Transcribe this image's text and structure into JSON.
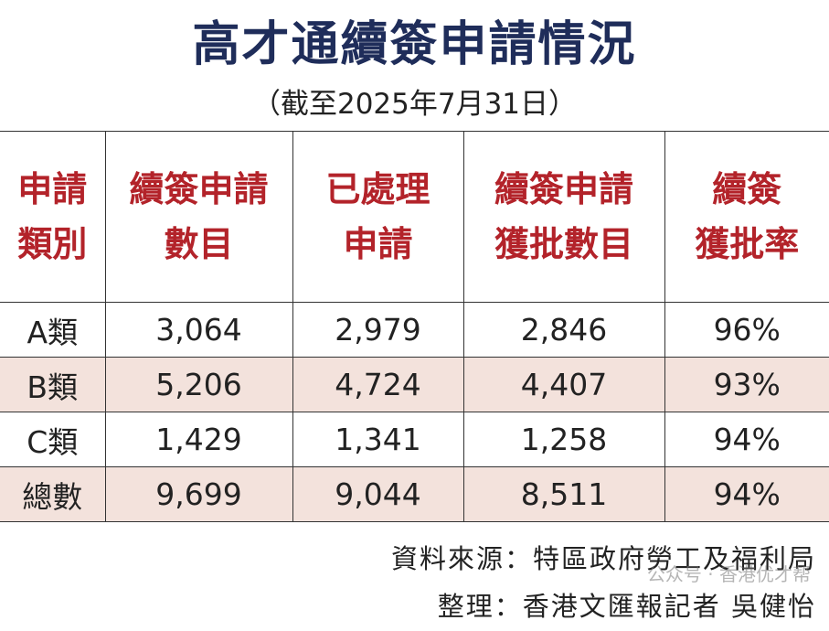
{
  "header": {
    "title": "高才通續簽申請情況",
    "subtitle": "（截至2025年7月31日）"
  },
  "table": {
    "columns": [
      [
        "申請",
        "類別"
      ],
      [
        "續簽申請",
        "數目"
      ],
      [
        "已處理",
        "申請"
      ],
      [
        "續簽申請",
        "獲批數目"
      ],
      [
        "續簽",
        "獲批率"
      ]
    ],
    "rows": [
      [
        "A類",
        "3,064",
        "2,979",
        "2,846",
        "96%"
      ],
      [
        "B類",
        "5,206",
        "4,724",
        "4,407",
        "93%"
      ],
      [
        "C類",
        "1,429",
        "1,341",
        "1,258",
        "94%"
      ],
      [
        "總數",
        "9,699",
        "9,044",
        "8,511",
        "94%"
      ]
    ]
  },
  "footer": {
    "source": "資料來源：特區政府勞工及福利局",
    "compiler": "整理：香港文匯報記者 吳健怡",
    "watermark": "公众号 · 香港优才帮"
  }
}
